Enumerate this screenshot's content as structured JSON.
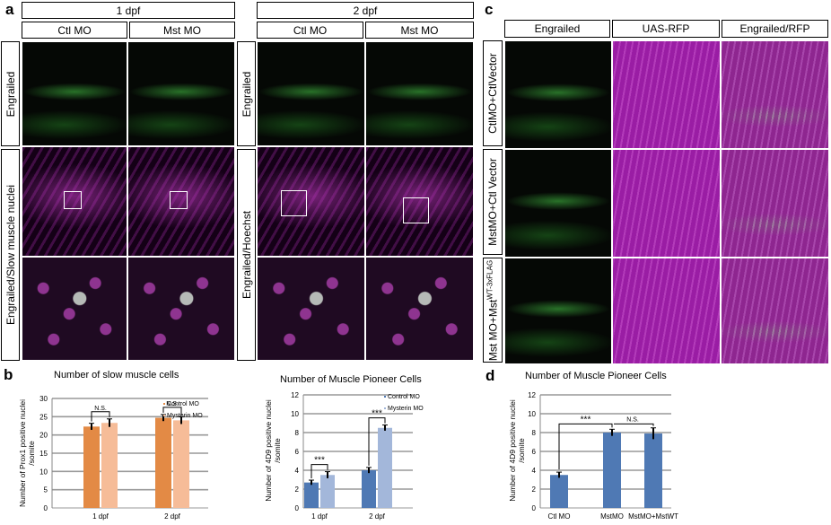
{
  "panel_a": {
    "letter": "a",
    "group1_header": "1 dpf",
    "group2_header": "2 dpf",
    "col_ctl": "Ctl MO",
    "col_mst": "Mst MO",
    "row1_label": "Engrailed",
    "row23_label_1dpf": "Engrailed/Slow muscle nuclei",
    "row23_label_2dpf": "Engrailed/Hoechst"
  },
  "panel_c": {
    "letter": "c",
    "col1": "Engrailed",
    "col2": "UAS-RFP",
    "col3": "Engrailed/RFP",
    "row1": "CtlMO+CtlVector",
    "row2": "MstMO+Ctl Vector",
    "row3_main": "Mst MO+Mst",
    "row3_sup": "WT-3xFLAG"
  },
  "panel_b_letter": "b",
  "panel_d_letter": "d",
  "chart_data": [
    {
      "type": "bar",
      "title": "Number of slow muscle cells",
      "ylabel": "Number of Prox1 positive nuclei /somite",
      "categories": [
        "1 dpf",
        "2 dpf"
      ],
      "series": [
        {
          "name": "Control MO",
          "values": [
            22.3,
            24.7
          ],
          "errors": [
            0.9,
            0.9
          ],
          "color": "#e38a45"
        },
        {
          "name": "Mysterin MO",
          "values": [
            23.3,
            24.0
          ],
          "errors": [
            1.1,
            1.0
          ],
          "color": "#f6bc98"
        }
      ],
      "ylim": [
        0,
        30
      ],
      "yticks": [
        "0",
        "5",
        "10",
        "15",
        "20",
        "25",
        "30"
      ],
      "annotations": [
        "N.S.",
        "N.S."
      ],
      "legend": "top-right",
      "grid": true
    },
    {
      "type": "bar",
      "title": "Number of Muscle Pioneer Cells",
      "ylabel": "Number of 4D9 positive nuclei /somite",
      "categories": [
        "1 dpf",
        "2 dpf"
      ],
      "series": [
        {
          "name": "Control MO",
          "values": [
            2.7,
            4.0
          ],
          "errors": [
            0.25,
            0.3
          ],
          "color": "#4f79b4"
        },
        {
          "name": "Mysterin MO",
          "values": [
            3.5,
            8.5
          ],
          "errors": [
            0.35,
            0.3
          ],
          "color": "#a3b7da"
        }
      ],
      "ylim": [
        0,
        12
      ],
      "yticks": [
        "0",
        "2",
        "4",
        "6",
        "8",
        "10",
        "12"
      ],
      "annotations": [
        "***",
        "***"
      ],
      "legend": "top-right",
      "grid": true
    },
    {
      "type": "bar",
      "title": "Number of Muscle Pioneer Cells",
      "ylabel": "Number of 4D9 positive nuclei /somite",
      "categories": [
        "Ctl MO",
        "MstMO",
        "MstMO+MstWT"
      ],
      "values": [
        3.5,
        8.0,
        7.9
      ],
      "errors": [
        0.3,
        0.35,
        0.6
      ],
      "color": "#4f79b4",
      "ylim": [
        0,
        12
      ],
      "yticks": [
        "0",
        "2",
        "4",
        "6",
        "8",
        "10",
        "12"
      ],
      "annotations": [
        "***",
        "N.S."
      ],
      "grid": true
    }
  ]
}
